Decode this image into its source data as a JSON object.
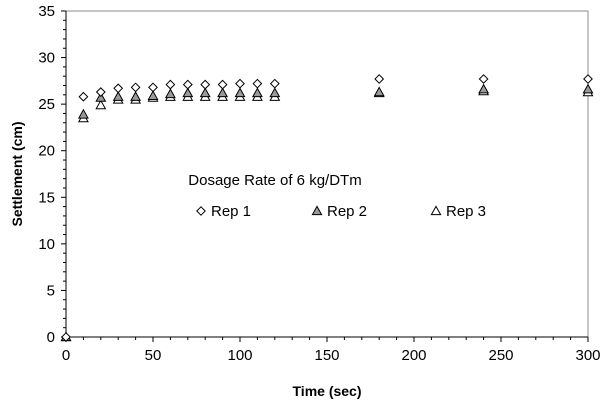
{
  "chart_data": {
    "type": "scatter",
    "title": "",
    "xlabel": "Time (sec)",
    "ylabel": "Settlement (cm)",
    "xlim": [
      0,
      300
    ],
    "ylim": [
      0,
      35
    ],
    "xticks": [
      0,
      50,
      100,
      150,
      200,
      250,
      300
    ],
    "yticks": [
      0,
      5,
      10,
      15,
      20,
      25,
      30,
      35
    ],
    "grid": false,
    "legend": "inside-center",
    "annotation": "Dosage Rate of 6 kg/DTm",
    "series": [
      {
        "name": "Rep 1",
        "marker": "diamond",
        "color": "#ffffff",
        "x": [
          0,
          10,
          20,
          30,
          40,
          50,
          60,
          70,
          80,
          90,
          100,
          110,
          120,
          180,
          240,
          300
        ],
        "y": [
          0,
          25.8,
          26.3,
          26.7,
          26.8,
          26.8,
          27.1,
          27.1,
          27.1,
          27.1,
          27.2,
          27.2,
          27.2,
          27.7,
          27.7,
          27.7
        ]
      },
      {
        "name": "Rep 2",
        "marker": "triangle",
        "color": "#9a9a9a",
        "x": [
          0,
          10,
          20,
          30,
          40,
          50,
          60,
          70,
          80,
          90,
          100,
          110,
          120,
          180,
          240,
          300
        ],
        "y": [
          0,
          23.9,
          25.7,
          25.8,
          25.8,
          25.9,
          26.1,
          26.2,
          26.2,
          26.2,
          26.2,
          26.2,
          26.2,
          26.3,
          26.6,
          26.6
        ]
      },
      {
        "name": "Rep 3",
        "marker": "triangle",
        "color": "#ffffff",
        "x": [
          0,
          10,
          20,
          30,
          40,
          50,
          60,
          70,
          80,
          90,
          100,
          110,
          120,
          180,
          240,
          300
        ],
        "y": [
          0,
          23.5,
          24.9,
          25.5,
          25.5,
          25.7,
          25.8,
          25.8,
          25.8,
          25.8,
          25.8,
          25.8,
          25.8,
          26.2,
          26.4,
          26.3
        ]
      }
    ]
  }
}
